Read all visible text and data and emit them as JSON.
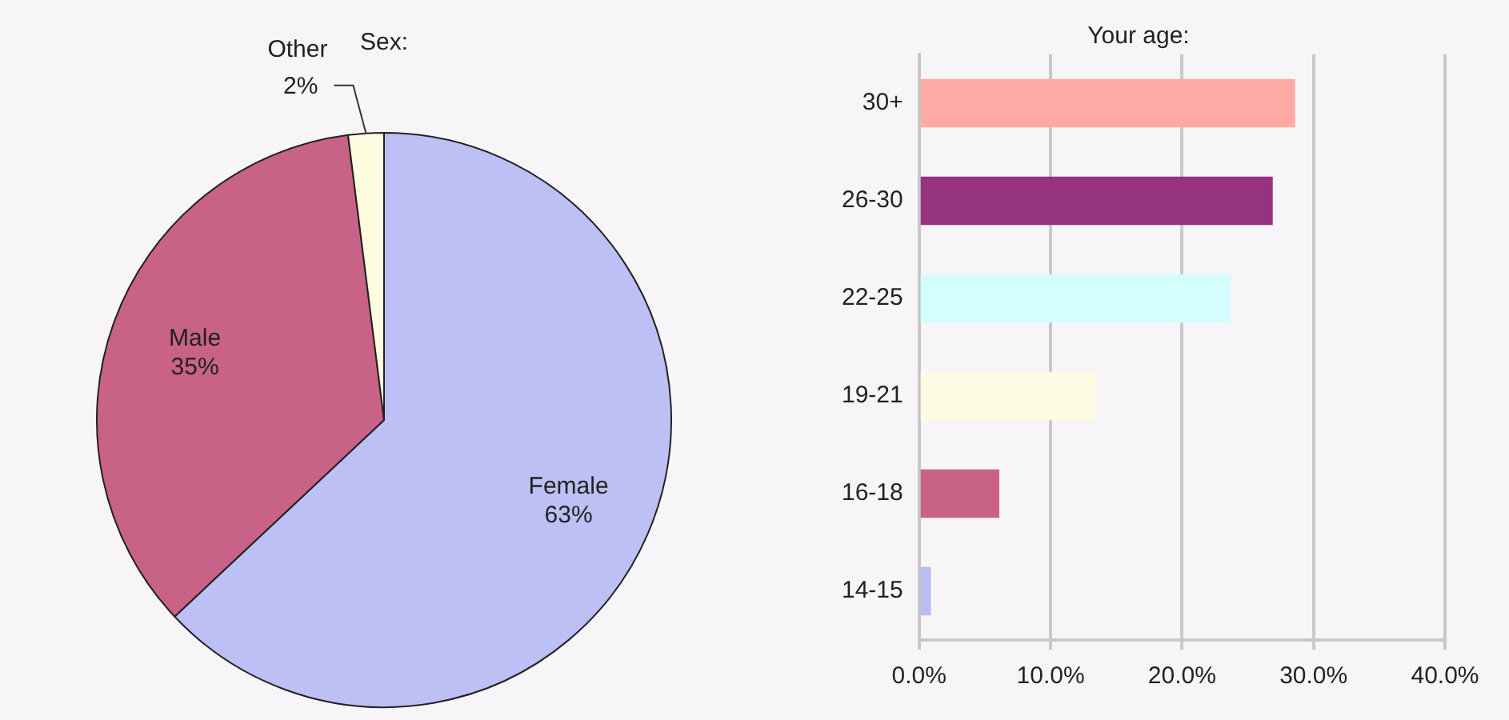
{
  "chart_data": [
    {
      "type": "pie",
      "title": "Sex:",
      "categories": [
        "Female",
        "Male",
        "Other"
      ],
      "values": [
        63,
        35,
        2
      ],
      "value_labels": [
        "63%",
        "35%",
        "2%"
      ],
      "colors": [
        "#bcc0f5",
        "#c86287",
        "#fffde0"
      ],
      "legend": false
    },
    {
      "type": "bar",
      "orientation": "horizontal",
      "title": "Your age:",
      "categories": [
        "30+",
        "26-30",
        "22-25",
        "19-21",
        "16-18",
        "14-15"
      ],
      "values": [
        28.6,
        26.9,
        23.7,
        13.5,
        6.1,
        0.9
      ],
      "colors": [
        "#ffaaa5",
        "#963380",
        "#d4fdfd",
        "#fefbe4",
        "#c86287",
        "#b8bcf2"
      ],
      "xlim": [
        0,
        40
      ],
      "xticks": [
        {
          "value": 0,
          "label": "0.0%"
        },
        {
          "value": 10,
          "label": "10.0%"
        },
        {
          "value": 20,
          "label": "20.0%"
        },
        {
          "value": 30,
          "label": "30.0%"
        },
        {
          "value": 40,
          "label": "40.0%"
        }
      ],
      "grid": "x",
      "legend": false
    }
  ]
}
